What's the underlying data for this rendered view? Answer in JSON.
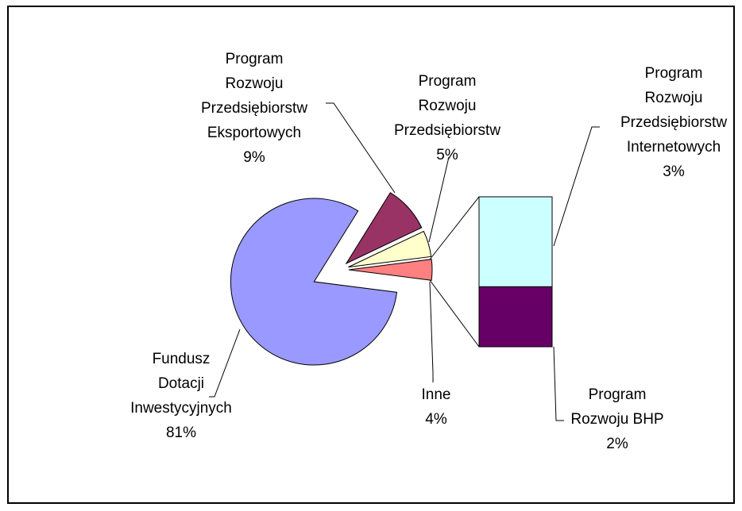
{
  "chart_data": {
    "type": "bar-of-pie",
    "categories": [
      "Fundusz\nDotacji\nInwestycyjnych",
      "Program\nRozwoju\nPrzedsiębiorstw\nEksportowych",
      "Program\nRozwoju\nPrzedsiębiorstw",
      "Inne"
    ],
    "values": [
      81,
      9,
      5,
      4
    ],
    "value_labels": [
      "81%",
      "9%",
      "5%",
      "4%"
    ],
    "colors": [
      "#9999ff",
      "#993366",
      "#ffffcc",
      "#ff8080"
    ],
    "bar": {
      "categories": [
        "Program\nRozwoju\nPrzedsiębiorstw\nInternetowych",
        "Program\nRozwoju BHP"
      ],
      "values": [
        3,
        2
      ],
      "value_labels": [
        "3%",
        "2%"
      ],
      "colors": [
        "#ccffff",
        "#660066"
      ]
    }
  }
}
